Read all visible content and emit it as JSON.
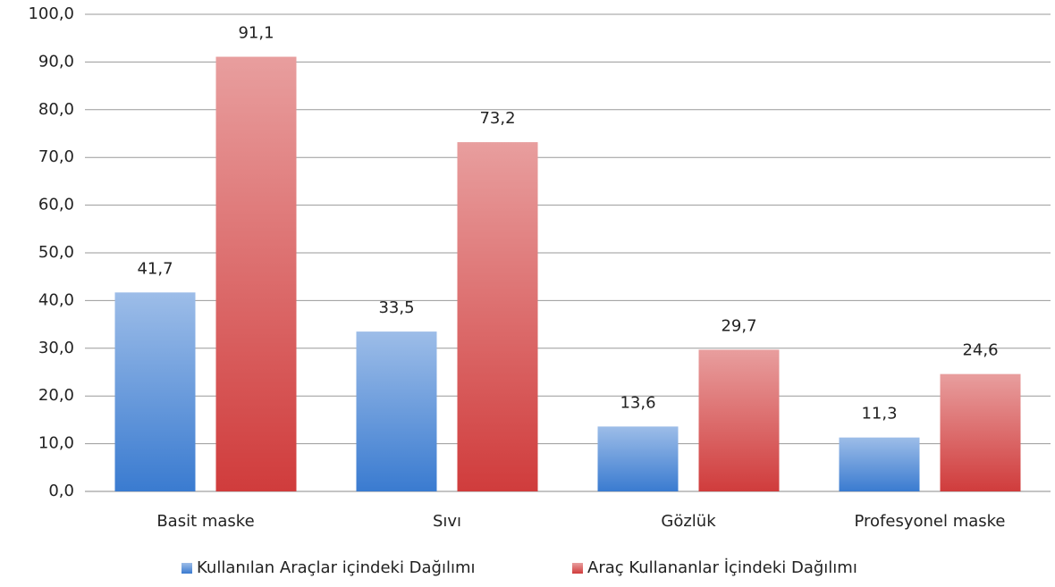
{
  "chart_data": {
    "type": "bar",
    "categories": [
      "Basit maske",
      "Sıvı",
      "Gözlük",
      "Profesyonel maske"
    ],
    "series": [
      {
        "name": "Kullanılan Araçlar içindeki Dağılımı",
        "color": "#3a7bd0",
        "values": [
          41.7,
          33.5,
          13.6,
          11.3
        ],
        "value_labels": [
          "41,7",
          "33,5",
          "13,6",
          "11,3"
        ]
      },
      {
        "name": "Araç Kullananlar İçindeki Dağılımı",
        "color": "#d03c3c",
        "values": [
          91.1,
          73.2,
          29.7,
          24.6
        ],
        "value_labels": [
          "91,1",
          "73,2",
          "29,7",
          "24,6"
        ]
      }
    ],
    "ylim": [
      0,
      100
    ],
    "yticks": [
      {
        "value": 0,
        "label": "0,0"
      },
      {
        "value": 10,
        "label": "10,0"
      },
      {
        "value": 20,
        "label": "20,0"
      },
      {
        "value": 30,
        "label": "30,0"
      },
      {
        "value": 40,
        "label": "40,0"
      },
      {
        "value": 50,
        "label": "50,0"
      },
      {
        "value": 60,
        "label": "60,0"
      },
      {
        "value": 70,
        "label": "70,0"
      },
      {
        "value": 80,
        "label": "80,0"
      },
      {
        "value": 90,
        "label": "90,0"
      },
      {
        "value": 100,
        "label": "100,0"
      }
    ],
    "grid": true,
    "legend": "bottom"
  }
}
